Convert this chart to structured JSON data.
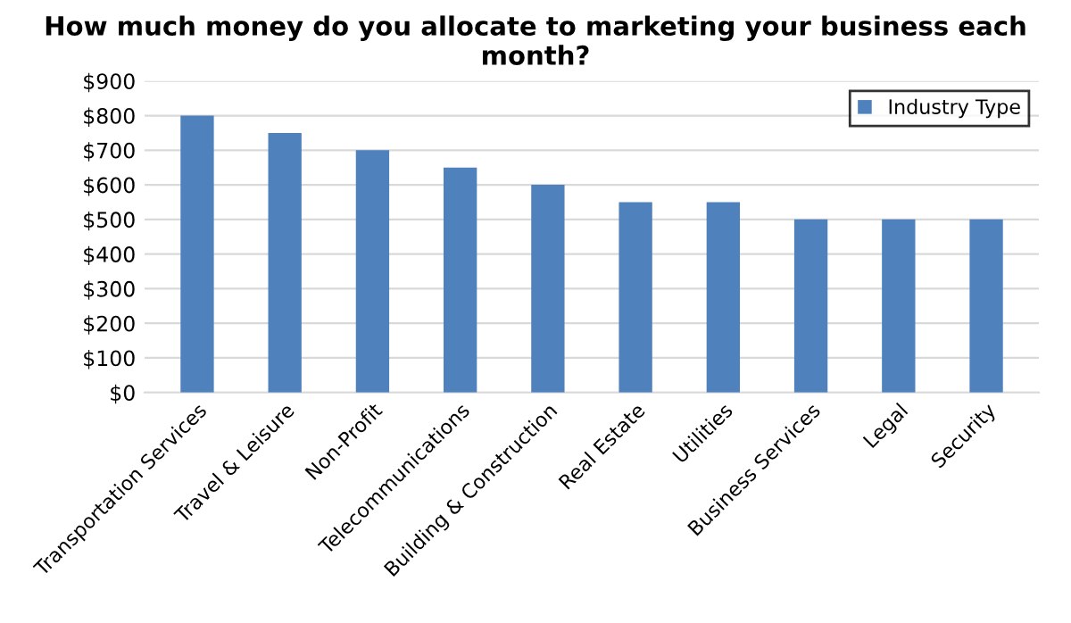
{
  "chart_data": {
    "type": "bar",
    "title": "How much money do you allocate to marketing your business each month?",
    "categories": [
      "Transportation Services",
      "Travel & Leisure",
      "Non-Profit",
      "Telecommunications",
      "Building & Construction",
      "Real Estate",
      "Utilities",
      "Business Services",
      "Legal",
      "Security"
    ],
    "series": [
      {
        "name": "Industry Type",
        "color": "#4f81bd",
        "values": [
          800,
          750,
          700,
          650,
          600,
          550,
          550,
          500,
          500,
          500
        ]
      }
    ],
    "ylim": [
      0,
      900
    ],
    "yticks": [
      {
        "value": 0,
        "label": "$0"
      },
      {
        "value": 100,
        "label": "$100"
      },
      {
        "value": 200,
        "label": "$200"
      },
      {
        "value": 300,
        "label": "$300"
      },
      {
        "value": 400,
        "label": "$400"
      },
      {
        "value": 500,
        "label": "$500"
      },
      {
        "value": 600,
        "label": "$600"
      },
      {
        "value": 700,
        "label": "$700"
      },
      {
        "value": 800,
        "label": "$800"
      },
      {
        "value": 900,
        "label": "$900"
      }
    ],
    "grid": "y",
    "legend": "top right"
  }
}
